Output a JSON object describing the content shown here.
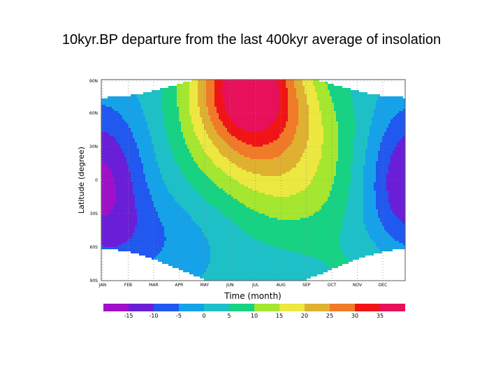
{
  "slide": {
    "title": "10kyr.BP departure from the last 400kyr average of insolation"
  },
  "chart_data": {
    "type": "heatmap",
    "title": "10kyr.BP departure from the last 400kyr average of insolation",
    "xlabel": "Time (month)",
    "ylabel": "Latitude (degree)",
    "x_ticks": [
      "JAN",
      "FEB",
      "MAR",
      "APR",
      "MAY",
      "JUN",
      "JUL",
      "AUG",
      "SEP",
      "OCT",
      "NOV",
      "DEC"
    ],
    "y_ticks": [
      "90N",
      "60N",
      "30N",
      "0",
      "30S",
      "60S",
      "90S"
    ],
    "y_range": [
      -90,
      90
    ],
    "colorbar": {
      "tick_labels": [
        "-15",
        "-10",
        "-5",
        "0",
        "5",
        "10",
        "15",
        "20",
        "25",
        "30",
        "35"
      ],
      "levels": [
        -20,
        -15,
        -10,
        -5,
        0,
        5,
        10,
        15,
        20,
        25,
        30,
        35,
        40
      ],
      "colors": [
        "#a010c8",
        "#6a1ed8",
        "#2058f0",
        "#16a2e8",
        "#1ec0c8",
        "#16d282",
        "#a4e630",
        "#ece840",
        "#e0b030",
        "#f07a28",
        "#f01416",
        "#e8105a"
      ]
    },
    "undefined_color": "#ffffff",
    "summary": "Positive anomalies up to 35 W/m2 near 90N in Jun-Jul; negative anomalies down to about -15 W/m2 in tropics during Dec-Feb; white areas = polar night (no insolation)."
  }
}
